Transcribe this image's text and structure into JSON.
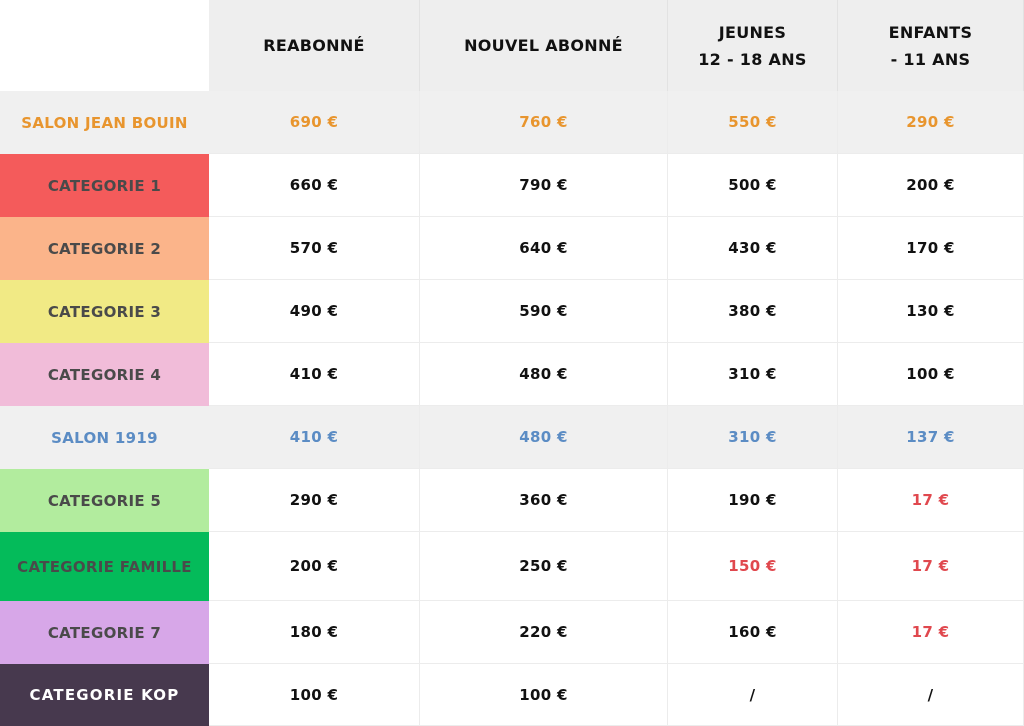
{
  "headers": {
    "reabonne": "REABONNÉ",
    "nouvel_abonne": "NOUVEL ABONNÉ",
    "jeunes": "JEUNES\n12 - 18 ANS",
    "enfants": "ENFANTS\n- 11 ANS"
  },
  "colors": {
    "orange_text": "#e8952e",
    "blue_text": "#5b8cc4",
    "red_text": "#e0484e",
    "cat1": "#f45b5b",
    "cat2": "#fbb48a",
    "cat3": "#f1ea85",
    "cat4": "#f1bcd9",
    "cat5": "#b2ec9e",
    "famille": "#04bb5a",
    "cat7": "#d7a7e8",
    "kop": "#47394e",
    "grey_row": "#f0f0f0"
  },
  "rows": [
    {
      "label": "SALON JEAN BOUIN",
      "reabonne": "690 €",
      "nouvel": "760 €",
      "jeunes": "550 €",
      "enfants": "290 €"
    },
    {
      "label": "CATEGORIE 1",
      "reabonne": "660 €",
      "nouvel": "790 €",
      "jeunes": "500 €",
      "enfants": "200 €"
    },
    {
      "label": "CATEGORIE 2",
      "reabonne": "570 €",
      "nouvel": "640 €",
      "jeunes": "430 €",
      "enfants": "170 €"
    },
    {
      "label": "CATEGORIE 3",
      "reabonne": "490 €",
      "nouvel": "590 €",
      "jeunes": "380 €",
      "enfants": "130 €"
    },
    {
      "label": "CATEGORIE 4",
      "reabonne": "410 €",
      "nouvel": "480 €",
      "jeunes": "310 €",
      "enfants": "100 €"
    },
    {
      "label": "SALON 1919",
      "reabonne": "410 €",
      "nouvel": "480 €",
      "jeunes": "310 €",
      "enfants": "137 €"
    },
    {
      "label": "CATEGORIE 5",
      "reabonne": "290 €",
      "nouvel": "360 €",
      "jeunes": "190 €",
      "enfants": "17 €"
    },
    {
      "label": "CATEGORIE FAMILLE",
      "reabonne": "200 €",
      "nouvel": "250 €",
      "jeunes": "150 €",
      "enfants": "17 €"
    },
    {
      "label": "CATEGORIE 7",
      "reabonne": "180 €",
      "nouvel": "220 €",
      "jeunes": "160 €",
      "enfants": "17 €"
    },
    {
      "label": "CATEGORIE KOP",
      "reabonne": "100 €",
      "nouvel": "100 €",
      "jeunes": "/",
      "enfants": "/"
    }
  ]
}
